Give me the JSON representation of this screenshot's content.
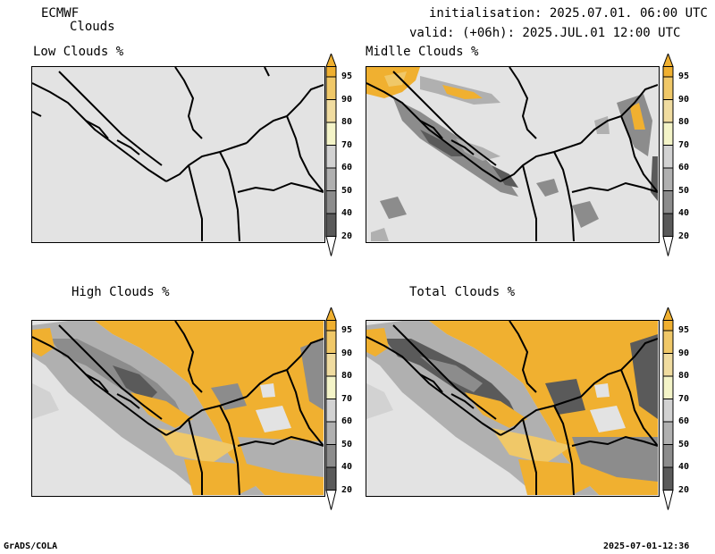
{
  "header": {
    "model": "ECMWF",
    "product": "Clouds",
    "init_line": "initialisation: 2025.07.01. 06:00 UTC",
    "valid_line": "valid: (+06h): 2025.JUL.01 12:00 UTC"
  },
  "panels": [
    {
      "title": "Low Clouds %"
    },
    {
      "title": "Midlle Clouds %"
    },
    {
      "title": "High Clouds %"
    },
    {
      "title": "Total Clouds %"
    }
  ],
  "colorbar": {
    "levels": [
      "95",
      "90",
      "80",
      "70",
      "60",
      "50",
      "40",
      "20"
    ],
    "colors": {
      "top": "#f0b030",
      "c90": "#f0c868",
      "c80": "#f0dca0",
      "c70": "#f4f4c8",
      "c60": "#d2d2d2",
      "c50": "#b0b0b0",
      "c40": "#8c8c8c",
      "c20": "#5a5a5a",
      "bottom": "#ffffff"
    }
  },
  "footer": {
    "left": "GrADS/COLA",
    "right": "2025-07-01-12:36"
  }
}
